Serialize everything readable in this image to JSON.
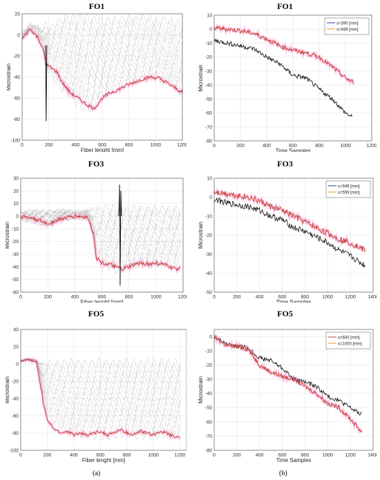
{
  "captions": {
    "left": "(a)",
    "right": "(b)"
  },
  "colors": {
    "black": "#1a1a1a",
    "red": "#c0392b",
    "orange": "#e8902a",
    "gray": "#8a8a8a",
    "pink": "#ff9fd8",
    "blue": "#2a3aa0"
  },
  "chart_data": [
    {
      "title": "FO1",
      "type": "line",
      "xlabel": "Fiber lenght [mm]",
      "ylabel": "Microstrain",
      "xlim": [
        0,
        1200
      ],
      "ylim": [
        -100,
        20
      ],
      "xticks": [
        0,
        200,
        400,
        600,
        800,
        1000,
        1200
      ],
      "yticks": [
        20,
        0,
        -20,
        -40,
        -60,
        -80,
        -100
      ],
      "grid": true,
      "series": [
        {
          "style": "gray-band",
          "x": [
            0,
            60,
            120,
            160,
            180,
            200,
            300,
            400,
            500,
            600,
            700,
            800,
            900,
            1000,
            1100,
            1200
          ],
          "upper": [
            2,
            10,
            8,
            4,
            12,
            5,
            15,
            14,
            16,
            12,
            14,
            15,
            17,
            14,
            13,
            10
          ],
          "lower": [
            -5,
            3,
            -2,
            -15,
            -30,
            -35,
            -50,
            -62,
            -70,
            -55,
            -50,
            -45,
            -42,
            -40,
            -45,
            -55
          ]
        },
        {
          "style": "orange",
          "x": [
            0,
            60,
            120,
            160,
            180,
            200,
            260,
            300,
            360,
            420,
            480,
            540,
            600,
            660,
            720,
            780,
            840,
            900,
            960,
            1020,
            1080,
            1140,
            1200
          ],
          "y": [
            -4,
            6,
            -3,
            -15,
            -28,
            -30,
            -35,
            -45,
            -55,
            -60,
            -66,
            -70,
            -60,
            -55,
            -52,
            -48,
            -45,
            -42,
            -40,
            -41,
            -45,
            -50,
            -55
          ]
        },
        {
          "style": "black-spike",
          "x": [
            175,
            180,
            185
          ],
          "y": [
            -10,
            -82,
            -10
          ]
        }
      ]
    },
    {
      "title": "FO1",
      "type": "line",
      "xlabel": "Time Samples",
      "ylabel": "Microstrain",
      "xlim": [
        0,
        1200
      ],
      "ylim": [
        -80,
        10
      ],
      "xticks": [
        0,
        200,
        400,
        600,
        800,
        1000,
        1200
      ],
      "yticks": [
        10,
        0,
        -10,
        -20,
        -30,
        -40,
        -50,
        -60,
        -70,
        -80
      ],
      "grid": true,
      "legend": "top-right",
      "series": [
        {
          "name": "x=390 [mm]",
          "style": "blue",
          "x": [
            0,
            100,
            200,
            300,
            400,
            500,
            600,
            700,
            800,
            900,
            1000,
            1050
          ],
          "y": [
            -8,
            -10,
            -12,
            -14,
            -20,
            -25,
            -33,
            -35,
            -43,
            -50,
            -60,
            -63
          ]
        },
        {
          "name": "x=949 [mm]",
          "style": "orange",
          "x": [
            0,
            100,
            200,
            300,
            400,
            500,
            600,
            700,
            800,
            900,
            1000,
            1060
          ],
          "y": [
            1,
            0,
            -1,
            -3,
            -7,
            -12,
            -15,
            -17,
            -20,
            -27,
            -35,
            -38
          ]
        }
      ]
    },
    {
      "title": "FO3",
      "type": "line",
      "xlabel": "Fiber lenght [mm]",
      "ylabel": "Microstrain",
      "xlim": [
        0,
        1200
      ],
      "ylim": [
        -60,
        30
      ],
      "xticks": [
        0,
        200,
        400,
        600,
        800,
        1000,
        1200
      ],
      "yticks": [
        30,
        20,
        10,
        0,
        -10,
        -20,
        -30,
        -40,
        -50,
        -60
      ],
      "grid": true,
      "series": [
        {
          "style": "gray-band",
          "x": [
            0,
            100,
            200,
            300,
            400,
            500,
            540,
            560,
            600,
            700,
            800,
            900,
            1000,
            1100,
            1180
          ],
          "upper": [
            3,
            5,
            4,
            5,
            4,
            5,
            5,
            6,
            6,
            6,
            5,
            6,
            5,
            6,
            5
          ],
          "lower": [
            -3,
            -5,
            -8,
            -3,
            -2,
            -2,
            -20,
            -34,
            -38,
            -42,
            -40,
            -38,
            -37,
            -38,
            -40
          ]
        },
        {
          "style": "orange",
          "x": [
            0,
            100,
            200,
            300,
            400,
            500,
            540,
            560,
            600,
            650,
            700,
            750,
            800,
            850,
            900,
            950,
            1000,
            1050,
            1100,
            1150,
            1180
          ],
          "y": [
            0,
            -2,
            -6,
            -2,
            0,
            -1,
            -15,
            -33,
            -37,
            -38,
            -40,
            -42,
            -40,
            -38,
            -37,
            -38,
            -37,
            -38,
            -40,
            -42,
            -40
          ]
        },
        {
          "style": "black-spike",
          "x": [
            725,
            730,
            735,
            740,
            745
          ],
          "y": [
            0,
            25,
            -55,
            20,
            0
          ]
        }
      ]
    },
    {
      "title": "FO3",
      "type": "line",
      "xlabel": "Time Samples",
      "ylabel": "Microstrain",
      "xlim": [
        0,
        1400
      ],
      "ylim": [
        -50,
        10
      ],
      "xticks": [
        0,
        200,
        400,
        600,
        800,
        1000,
        1200,
        1400
      ],
      "yticks": [
        10,
        0,
        -10,
        -20,
        -30,
        -40,
        -50
      ],
      "grid": true,
      "legend": "top-right",
      "series": [
        {
          "name": "x=949 [mm]",
          "style": "blue",
          "x": [
            0,
            100,
            200,
            300,
            400,
            500,
            600,
            700,
            800,
            900,
            1000,
            1100,
            1200,
            1300,
            1330
          ],
          "y": [
            -1,
            -3,
            -4,
            -5,
            -7,
            -10,
            -12,
            -16,
            -18,
            -21,
            -24,
            -28,
            -31,
            -35,
            -36
          ]
        },
        {
          "name": "x=559 [mm]",
          "style": "orange",
          "x": [
            0,
            100,
            200,
            300,
            400,
            500,
            600,
            700,
            800,
            900,
            1000,
            1100,
            1200,
            1300,
            1330
          ],
          "y": [
            3,
            2,
            1,
            0,
            -2,
            -5,
            -7,
            -10,
            -13,
            -16,
            -19,
            -22,
            -24,
            -27,
            -28
          ]
        }
      ]
    },
    {
      "title": "FO5",
      "type": "line",
      "xlabel": "Fiber lenght [mm]",
      "ylabel": "Microstrain",
      "xlim": [
        0,
        1250
      ],
      "ylim": [
        -100,
        40
      ],
      "xticks": [
        0,
        200,
        400,
        600,
        800,
        1000,
        1200
      ],
      "yticks": [
        40,
        20,
        0,
        -20,
        -40,
        -60,
        -80,
        -100
      ],
      "grid": true,
      "series": [
        {
          "style": "gray-band",
          "x": [
            0,
            60,
            120,
            150,
            170,
            200,
            300,
            400,
            500,
            600,
            700,
            800,
            900,
            1000,
            1100,
            1200
          ],
          "upper": [
            4,
            6,
            4,
            2,
            0,
            1,
            0,
            1,
            0,
            1,
            0,
            1,
            0,
            1,
            0,
            2
          ],
          "lower": [
            3,
            5,
            2,
            -20,
            -40,
            -60,
            -75,
            -80,
            -82,
            -84,
            -82,
            -80,
            -82,
            -84,
            -80,
            -85
          ]
        },
        {
          "style": "orange",
          "x": [
            0,
            60,
            120,
            150,
            170,
            200,
            250,
            300,
            350,
            400,
            450,
            500,
            550,
            600,
            650,
            700,
            750,
            800,
            850,
            900,
            950,
            1000,
            1050,
            1100,
            1150,
            1200
          ],
          "y": [
            3,
            5,
            2,
            -25,
            -45,
            -65,
            -75,
            -80,
            -78,
            -82,
            -80,
            -83,
            -80,
            -78,
            -82,
            -80,
            -76,
            -80,
            -82,
            -78,
            -80,
            -82,
            -78,
            -80,
            -84,
            -85
          ]
        }
      ]
    },
    {
      "title": "FO5",
      "type": "line",
      "xlabel": "Time Samples",
      "ylabel": "Microstrain",
      "xlim": [
        0,
        1400
      ],
      "ylim": [
        -80,
        5
      ],
      "xticks": [
        0,
        200,
        400,
        600,
        800,
        1000,
        1200,
        1400
      ],
      "yticks": [
        0,
        -10,
        -20,
        -30,
        -40,
        -50,
        -60,
        -70,
        -80
      ],
      "grid": true,
      "legend": "top-right",
      "series": [
        {
          "name": "x=600 [mm]",
          "style": "black",
          "x": [
            0,
            100,
            200,
            300,
            400,
            500,
            600,
            700,
            800,
            900,
            1000,
            1100,
            1200,
            1300
          ],
          "y": [
            0,
            -5,
            -7,
            -8,
            -15,
            -17,
            -22,
            -30,
            -32,
            -35,
            -42,
            -45,
            -50,
            -55
          ]
        },
        {
          "name": "x=1000 [mm]",
          "style": "orange",
          "x": [
            0,
            100,
            200,
            300,
            400,
            500,
            600,
            700,
            800,
            900,
            1000,
            1100,
            1200,
            1300
          ],
          "y": [
            0,
            -6,
            -7,
            -9,
            -20,
            -25,
            -28,
            -30,
            -35,
            -40,
            -47,
            -50,
            -58,
            -67
          ]
        }
      ]
    }
  ]
}
